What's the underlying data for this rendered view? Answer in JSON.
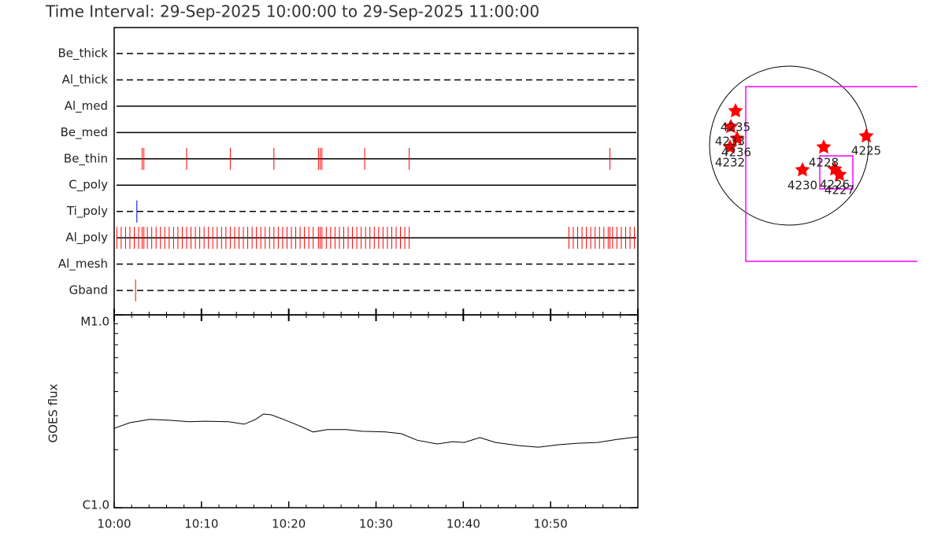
{
  "chart_data": [
    {
      "type": "timeline",
      "title": "Time Interval: 29-Sep-2025 10:00:00 to 29-Sep-2025 11:00:00",
      "xlim": [
        0,
        60
      ],
      "rows": [
        {
          "name": "Be_thick",
          "line_style": "dashed",
          "color": "#ff0000",
          "events": []
        },
        {
          "name": "Al_thick",
          "line_style": "dashed",
          "color": "#ff0000",
          "events": []
        },
        {
          "name": "Al_med",
          "line_style": "solid",
          "color": "#ff0000",
          "events": []
        },
        {
          "name": "Be_med",
          "line_style": "solid",
          "color": "#ff0000",
          "events": []
        },
        {
          "name": "Be_thin",
          "line_style": "solid",
          "color": "#ff0000",
          "events": [
            3.2,
            3.4,
            8.3,
            13.3,
            18.3,
            23.4,
            23.6,
            23.8,
            28.7,
            33.8,
            56.8
          ]
        },
        {
          "name": "C_poly",
          "line_style": "solid",
          "color": "#ff0000",
          "events": []
        },
        {
          "name": "Ti_poly",
          "line_style": "dashed",
          "color": "#0000cc",
          "events": [
            2.6
          ]
        },
        {
          "name": "Al_poly",
          "line_style": "solid",
          "color": "#ff0000",
          "events": [
            0.3,
            0.8,
            1.3,
            1.8,
            2.3,
            2.8,
            3.2,
            3.4,
            3.8,
            4.3,
            4.8,
            5.3,
            5.8,
            6.3,
            6.8,
            7.3,
            7.8,
            8.3,
            8.8,
            9.3,
            9.8,
            10.3,
            10.8,
            11.3,
            11.8,
            12.3,
            12.8,
            13.3,
            13.8,
            14.3,
            14.8,
            15.3,
            15.8,
            16.3,
            16.8,
            17.3,
            17.8,
            18.3,
            18.8,
            19.3,
            19.8,
            20.3,
            20.8,
            21.3,
            21.8,
            22.3,
            22.8,
            23.4,
            23.6,
            23.8,
            24.3,
            24.8,
            25.3,
            25.8,
            26.3,
            26.8,
            27.3,
            27.8,
            28.3,
            28.8,
            29.3,
            29.8,
            30.3,
            30.8,
            31.3,
            31.8,
            32.3,
            32.8,
            33.3,
            33.8,
            52.1,
            52.6,
            53.1,
            53.6,
            54.1,
            54.6,
            55.1,
            55.6,
            56.1,
            56.6,
            56.8,
            57.1,
            57.6,
            58.1,
            58.6,
            59.1,
            59.6
          ]
        },
        {
          "name": "Al_mesh",
          "line_style": "dashed",
          "color": "#ff0000",
          "events": []
        },
        {
          "name": "Gband",
          "line_style": "dashed",
          "color": "#ff0000",
          "events": [
            2.45
          ]
        }
      ]
    },
    {
      "type": "line",
      "ylabel": "GOES flux",
      "log_scale": true,
      "color": "#000000",
      "xlim": [
        0,
        60
      ],
      "xticks": [
        {
          "value": 0,
          "label": "10:00"
        },
        {
          "value": 10,
          "label": "10:10"
        },
        {
          "value": 20,
          "label": "10:20"
        },
        {
          "value": 30,
          "label": "10:30"
        },
        {
          "value": 40,
          "label": "10:40"
        },
        {
          "value": 50,
          "label": "10:50"
        }
      ],
      "ylim": [
        1e-06,
        1e-05
      ],
      "yticks": [
        {
          "value": 1e-06,
          "label": "C1.0"
        },
        {
          "value": 1e-05,
          "label": "M1.0"
        }
      ],
      "x": [
        0,
        1.8,
        4.1,
        6.3,
        8.6,
        10.4,
        13.1,
        14.9,
        16.2,
        17.1,
        18.0,
        19.4,
        21.2,
        22.8,
        24.4,
        26.6,
        28.4,
        31.1,
        32.9,
        34.7,
        37.0,
        38.8,
        40.1,
        41.9,
        43.7,
        46.4,
        48.6,
        50.9,
        53.1,
        55.4,
        57.6,
        60
      ],
      "values": [
        2.58e-06,
        2.76e-06,
        2.87e-06,
        2.84e-06,
        2.79e-06,
        2.81e-06,
        2.79e-06,
        2.71e-06,
        2.87e-06,
        3.06e-06,
        3.03e-06,
        2.87e-06,
        2.66e-06,
        2.47e-06,
        2.54e-06,
        2.54e-06,
        2.49e-06,
        2.47e-06,
        2.42e-06,
        2.24e-06,
        2.14e-06,
        2.2e-06,
        2.18e-06,
        2.31e-06,
        2.18e-06,
        2.1e-06,
        2.06e-06,
        2.12e-06,
        2.16e-06,
        2.18e-06,
        2.26e-06,
        2.33e-06
      ]
    }
  ],
  "map": {
    "regions": [
      "4235",
      "4233",
      "4236",
      "4232",
      "4225",
      "4228",
      "4230",
      "4226",
      "4227"
    ]
  }
}
